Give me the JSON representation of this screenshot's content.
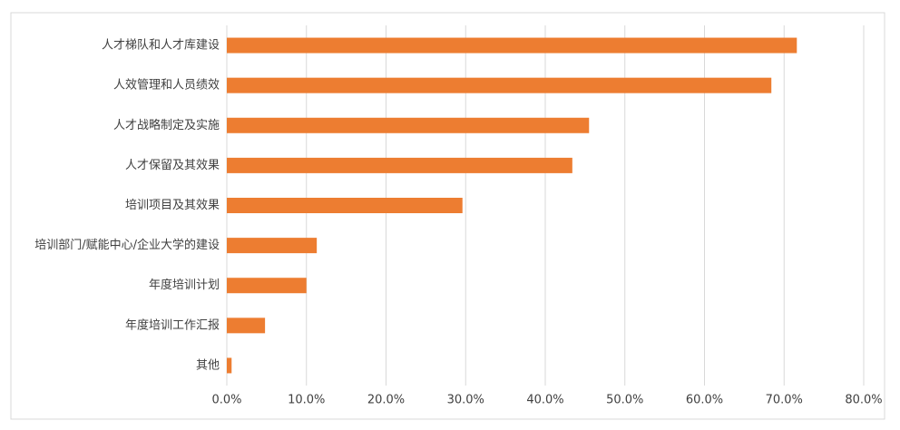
{
  "chart_data": {
    "type": "bar",
    "orientation": "horizontal",
    "categories": [
      "人才梯队和人才库建设",
      "人效管理和人员绩效",
      "人才战略制定及实施",
      "人才保留及其效果",
      "培训项目及其效果",
      "培训部门/赋能中心/企业大学的建设",
      "年度培训计划",
      "年度培训工作汇报",
      "其他"
    ],
    "values": [
      71.6,
      68.4,
      45.5,
      43.4,
      29.6,
      11.3,
      10.0,
      4.8,
      0.6
    ],
    "color": "#ed7d31",
    "xlim": [
      0,
      80
    ],
    "xticks": [
      {
        "value": 0,
        "label": "0.0%"
      },
      {
        "value": 10,
        "label": "10.0%"
      },
      {
        "value": 20,
        "label": "20.0%"
      },
      {
        "value": 30,
        "label": "30.0%"
      },
      {
        "value": 40,
        "label": "40.0%"
      },
      {
        "value": 50,
        "label": "50.0%"
      },
      {
        "value": 60,
        "label": "60.0%"
      },
      {
        "value": 70,
        "label": "70.0%"
      },
      {
        "value": 80,
        "label": "80.0%"
      }
    ],
    "grid": true
  }
}
